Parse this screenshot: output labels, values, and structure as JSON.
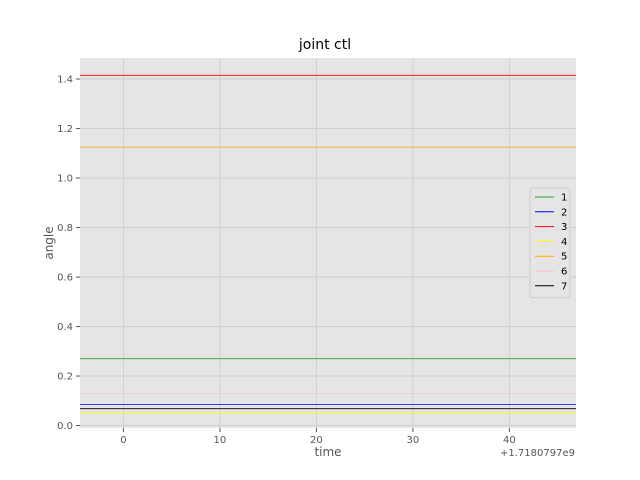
{
  "chart_data": {
    "type": "line",
    "title": "joint ctl",
    "xlabel": "time",
    "ylabel": "angle",
    "x_offset_label": "+1.7180797e9",
    "xlim": [
      -4.5,
      46.9
    ],
    "ylim": [
      -0.01,
      1.485
    ],
    "x_ticks": [
      0,
      10,
      20,
      30,
      40
    ],
    "x_tick_labels": [
      "0",
      "10",
      "20",
      "30",
      "40"
    ],
    "y_ticks": [
      0.0,
      0.2,
      0.4,
      0.6,
      0.8,
      1.0,
      1.2,
      1.4
    ],
    "y_tick_labels": [
      "0.0",
      "0.2",
      "0.4",
      "0.6",
      "0.8",
      "1.0",
      "1.2",
      "1.4"
    ],
    "grid": true,
    "legend_position": "center-right",
    "background": "#e5e5e5",
    "x": [
      -4.5,
      46.9
    ],
    "series": [
      {
        "name": "1",
        "color": "#2ca02c",
        "values": [
          0.27,
          0.27
        ]
      },
      {
        "name": "2",
        "color": "#0000ff",
        "values": [
          0.085,
          0.085
        ]
      },
      {
        "name": "3",
        "color": "#ff0000",
        "values": [
          1.415,
          1.415
        ]
      },
      {
        "name": "4",
        "color": "#ffff00",
        "values": [
          0.052,
          0.052
        ]
      },
      {
        "name": "5",
        "color": "#ffa500",
        "values": [
          1.125,
          1.125
        ]
      },
      {
        "name": "6",
        "color": "#ffc0cb",
        "values": [
          0.13,
          0.13
        ]
      },
      {
        "name": "7",
        "color": "#000000",
        "values": [
          0.068,
          0.068
        ]
      }
    ]
  }
}
